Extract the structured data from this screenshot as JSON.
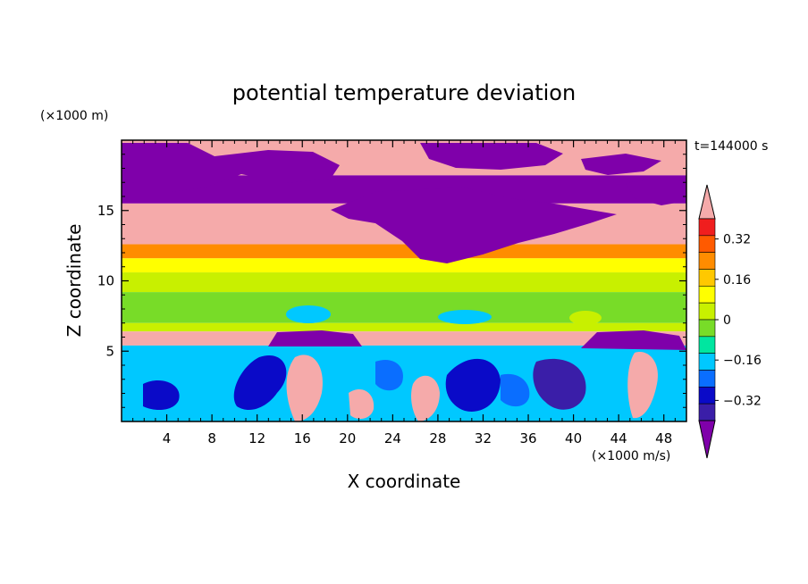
{
  "chart_data": {
    "type": "heatmap",
    "title": "potential temperature deviation",
    "xlabel": "X coordinate",
    "ylabel": "Z coordinate",
    "x_unit": "(×1000 m/s)",
    "y_unit": "(×1000 m)",
    "time_label": "t=144000 s",
    "xlim": [
      0,
      50
    ],
    "ylim": [
      0,
      20
    ],
    "x_ticks": [
      4,
      8,
      12,
      16,
      20,
      24,
      28,
      32,
      36,
      40,
      44,
      48
    ],
    "y_ticks": [
      5,
      10,
      15
    ],
    "colorbar": {
      "levels": [
        -0.4,
        -0.32,
        -0.24,
        -0.16,
        -0.08,
        0,
        0.08,
        0.16,
        0.24,
        0.32,
        0.4
      ],
      "tick_labels": [
        "0.32",
        "0.16",
        "0",
        "−0.16",
        "−0.32"
      ],
      "tick_values": [
        0.32,
        0.16,
        0,
        -0.16,
        -0.32
      ],
      "colors": [
        "#7f00aa",
        "#3a1ea8",
        "#0a0ac8",
        "#0a6eff",
        "#00c8ff",
        "#00e6a0",
        "#78dc28",
        "#c8f000",
        "#ffff00",
        "#ffc800",
        "#ff8c00",
        "#ff5a00",
        "#f01e1e",
        "#f5aaaa"
      ],
      "extend": "both"
    },
    "bands": [
      {
        "z": [
          17.5,
          20
        ],
        "value": 0.45
      },
      {
        "z": [
          15.5,
          17.5
        ],
        "value": -0.45
      },
      {
        "z": [
          12.6,
          15.5
        ],
        "value": 0.45
      },
      {
        "z": [
          11.6,
          12.6
        ],
        "value": 0.34
      },
      {
        "z": [
          10.6,
          11.6
        ],
        "value": 0.2
      },
      {
        "z": [
          9.2,
          10.6
        ],
        "value": 0.1
      },
      {
        "z": [
          7.0,
          9.2
        ],
        "value": 0.02
      },
      {
        "z": [
          6.4,
          7.0
        ],
        "value": 0.1
      },
      {
        "z": [
          5.4,
          6.4
        ],
        "value": 0.45
      },
      {
        "z": [
          0,
          5.4
        ],
        "value": -0.1
      }
    ]
  }
}
